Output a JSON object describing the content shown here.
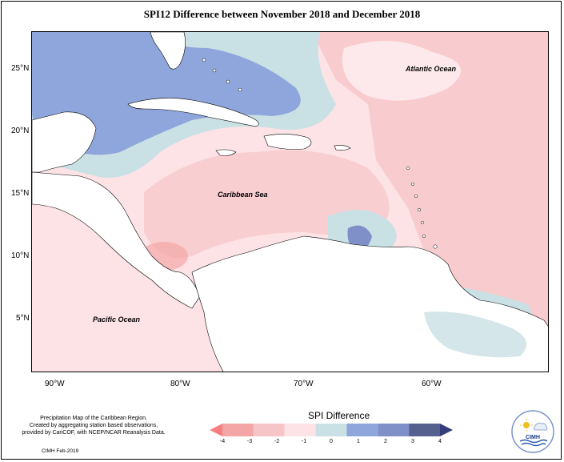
{
  "title": "SPI12 Difference between November 2018 and December 2018",
  "map": {
    "latitude_labels": [
      "25°N",
      "20°N",
      "15°N",
      "10°N",
      "5°N"
    ],
    "longitude_labels": [
      "90°W",
      "80°W",
      "70°W",
      "60°W"
    ],
    "labels": {
      "atlantic": "Atlantic Ocean",
      "caribbean": "Caribbean Sea",
      "pacific": "Pacific Ocean"
    }
  },
  "legend": {
    "title": "SPI Difference",
    "ticks": [
      "-4",
      "-3",
      "-2",
      "-1",
      "0",
      "1",
      "2",
      "3",
      "4"
    ],
    "colors": [
      "#f77f7f",
      "#f4a6a6",
      "#f6c5c8",
      "#fde3e6",
      "#c9e0e4",
      "#8fa6dd",
      "#7f8fc8",
      "#56608f",
      "#343d7a"
    ]
  },
  "credits": {
    "line1": "Precipitation Map of the Caribbean Region.",
    "line2": "Created by aggregating station based observations,",
    "line3": "provided by CariCOF, with NCEP/NCAR Reanalysis Data."
  },
  "date": "CIMH Feb-2019",
  "logo_text": "CIMH"
}
